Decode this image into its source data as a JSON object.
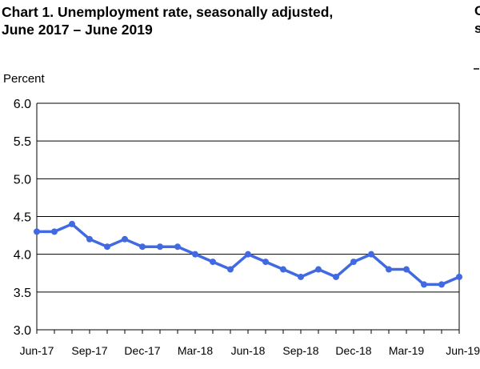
{
  "page": {
    "title": "Chart 1. Unemployment rate, seasonally adjusted,\nJune 2017 – June 2019",
    "cut_off_lines": [
      "C",
      "s"
    ]
  },
  "chart_data": {
    "type": "line",
    "title": "Chart 1. Unemployment rate, seasonally adjusted,\nJune 2017 – June 2019",
    "xlabel": "",
    "ylabel": "Percent",
    "ylim": [
      3.0,
      6.0
    ],
    "yticks": [
      3.0,
      3.5,
      4.0,
      4.5,
      5.0,
      5.5,
      6.0
    ],
    "ytick_labels": [
      "3.0",
      "3.5",
      "4.0",
      "4.5",
      "5.0",
      "5.5",
      "6.0"
    ],
    "xtick_labels": [
      "Jun-17",
      "Sep-17",
      "Dec-17",
      "Mar-18",
      "Jun-18",
      "Sep-18",
      "Dec-18",
      "Mar-19",
      "Jun-19"
    ],
    "xtick_every": 3,
    "grid": "horizontal",
    "legend": "none",
    "color": "#4169e1",
    "series": [
      {
        "values": [
          4.3,
          4.3,
          4.4,
          4.2,
          4.1,
          4.2,
          4.1,
          4.1,
          4.1,
          4.0,
          3.9,
          3.8,
          4.0,
          3.9,
          3.8,
          3.7,
          3.8,
          3.7,
          3.9,
          4.0,
          3.8,
          3.8,
          3.6,
          3.6,
          3.7
        ]
      }
    ]
  }
}
